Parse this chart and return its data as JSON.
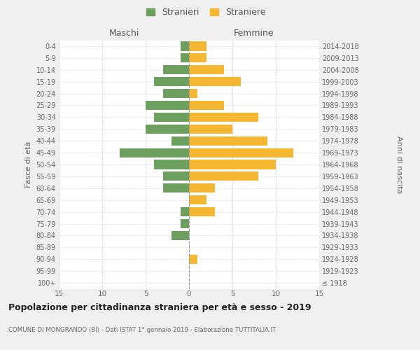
{
  "age_groups": [
    "100+",
    "95-99",
    "90-94",
    "85-89",
    "80-84",
    "75-79",
    "70-74",
    "65-69",
    "60-64",
    "55-59",
    "50-54",
    "45-49",
    "40-44",
    "35-39",
    "30-34",
    "25-29",
    "20-24",
    "15-19",
    "10-14",
    "5-9",
    "0-4"
  ],
  "birth_years": [
    "≤ 1918",
    "1919-1923",
    "1924-1928",
    "1929-1933",
    "1934-1938",
    "1939-1943",
    "1944-1948",
    "1949-1953",
    "1954-1958",
    "1959-1963",
    "1964-1968",
    "1969-1973",
    "1974-1978",
    "1979-1983",
    "1984-1988",
    "1989-1993",
    "1994-1998",
    "1999-2003",
    "2004-2008",
    "2009-2013",
    "2014-2018"
  ],
  "maschi": [
    0,
    0,
    0,
    0,
    2,
    1,
    1,
    0,
    3,
    3,
    4,
    8,
    2,
    5,
    4,
    5,
    3,
    4,
    3,
    1,
    1
  ],
  "femmine": [
    0,
    0,
    1,
    0,
    0,
    0,
    3,
    2,
    3,
    8,
    10,
    12,
    9,
    5,
    8,
    4,
    1,
    6,
    4,
    2,
    2
  ],
  "color_maschi": "#6d9f5e",
  "color_femmine": "#f5b731",
  "background_color": "#f0f0f0",
  "plot_background": "#ffffff",
  "grid_color": "#cccccc",
  "title": "Popolazione per cittadinanza straniera per età e sesso - 2019",
  "subtitle": "COMUNE DI MONGRANDO (BI) - Dati ISTAT 1° gennaio 2019 - Elaborazione TUTTITALIA.IT",
  "ylabel_left": "Fasce di età",
  "ylabel_right": "Anni di nascita",
  "header_maschi": "Maschi",
  "header_femmine": "Femmine",
  "legend_stranieri": "Stranieri",
  "legend_straniere": "Straniere",
  "xlim": 15
}
